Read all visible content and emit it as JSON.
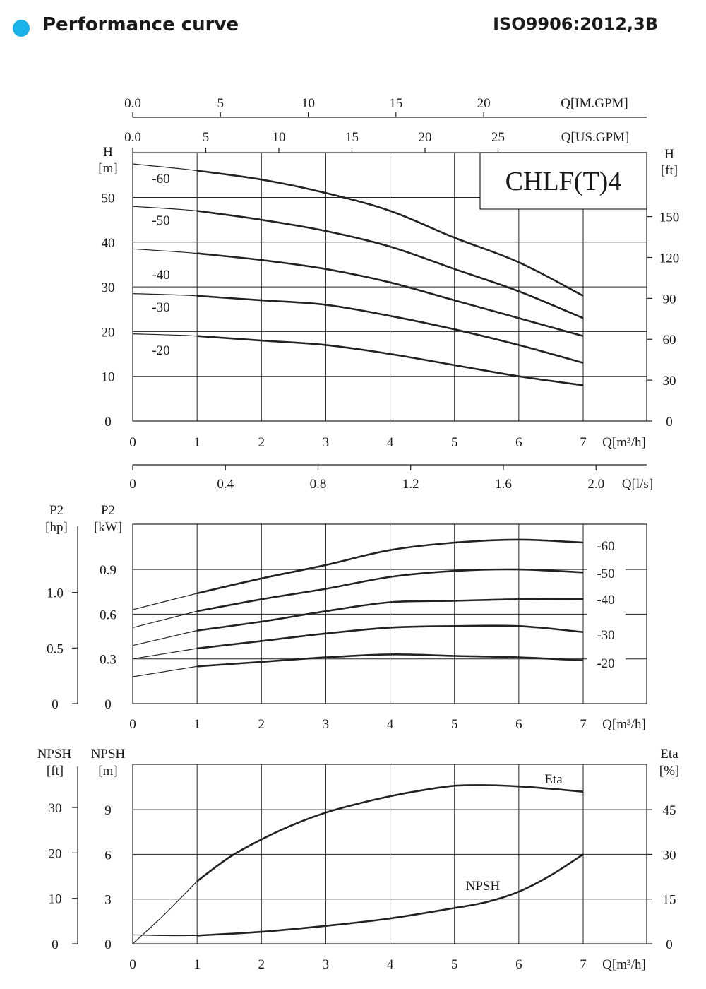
{
  "header": {
    "title": "Performance curve",
    "standard": "ISO9906:2012,3B",
    "dot_color": "#1ab2e8"
  },
  "model": "CHLF(T)4",
  "chart_data": [
    {
      "type": "line",
      "id": "head",
      "x_label": "Q[m³/h]",
      "x_ticks": [
        0,
        1,
        2,
        3,
        4,
        5,
        6,
        7
      ],
      "xlim": [
        0,
        7
      ],
      "ylim": [
        0,
        57
      ],
      "left_axis": {
        "label_line1": "H",
        "label_line2": "[m]",
        "ticks": [
          0,
          10,
          20,
          30,
          40,
          50
        ]
      },
      "right_axis": {
        "label_line1": "H",
        "label_line2": "[ft]",
        "ticks": [
          0,
          30,
          60,
          90,
          120,
          150
        ]
      },
      "top_axes": [
        {
          "label": "Q[IM.GPM]",
          "ticks": [
            0.0,
            5,
            10,
            15,
            20
          ]
        },
        {
          "label": "Q[US.GPM]",
          "ticks": [
            0.0,
            5,
            10,
            15,
            20,
            25
          ]
        }
      ],
      "bottom_axis2": {
        "label": "Q[l/s]",
        "ticks": [
          0,
          0.4,
          0.8,
          1.2,
          1.6,
          2.0
        ]
      },
      "series": [
        {
          "name": "-60",
          "x": [
            0,
            1,
            2,
            3,
            4,
            5,
            6,
            7
          ],
          "y": [
            57.5,
            56,
            54,
            51,
            47,
            41,
            35.5,
            28
          ]
        },
        {
          "name": "-50",
          "x": [
            0,
            1,
            2,
            3,
            4,
            5,
            6,
            7
          ],
          "y": [
            48,
            47,
            45,
            42.5,
            39,
            34,
            29,
            23
          ]
        },
        {
          "name": "-40",
          "x": [
            0,
            1,
            2,
            3,
            4,
            5,
            6,
            7
          ],
          "y": [
            38.5,
            37.5,
            36,
            34,
            31,
            27,
            23,
            19
          ]
        },
        {
          "name": "-30",
          "x": [
            0,
            1,
            2,
            3,
            4,
            5,
            6,
            7
          ],
          "y": [
            28.5,
            28,
            27,
            26,
            23.5,
            20.5,
            17,
            13
          ]
        },
        {
          "name": "-20",
          "x": [
            0,
            1,
            2,
            3,
            4,
            5,
            6,
            7
          ],
          "y": [
            19.5,
            19,
            18,
            17,
            15,
            12.5,
            10,
            8
          ]
        }
      ]
    },
    {
      "type": "line",
      "id": "power",
      "x_label": "Q[m³/h]",
      "x_ticks": [
        0,
        1,
        2,
        3,
        4,
        5,
        6,
        7
      ],
      "xlim": [
        0,
        7
      ],
      "ylim": [
        0,
        1.2
      ],
      "left_axis": {
        "label_line1": "P2",
        "label_line2": "[kW]",
        "ticks": [
          0,
          0.3,
          0.6,
          0.9
        ]
      },
      "outer_axis": {
        "label_line1": "P2",
        "label_line2": "[hp]",
        "ticks": [
          0,
          0.5,
          1.0
        ]
      },
      "series": [
        {
          "name": "-60",
          "x": [
            0,
            1,
            2,
            3,
            4,
            5,
            6,
            7
          ],
          "y": [
            0.63,
            0.74,
            0.84,
            0.93,
            1.03,
            1.08,
            1.1,
            1.08
          ]
        },
        {
          "name": "-50",
          "x": [
            0,
            1,
            2,
            3,
            4,
            5,
            6,
            7
          ],
          "y": [
            0.51,
            0.62,
            0.7,
            0.77,
            0.85,
            0.89,
            0.9,
            0.88
          ]
        },
        {
          "name": "-40",
          "x": [
            0,
            1,
            2,
            3,
            4,
            5,
            6,
            7
          ],
          "y": [
            0.39,
            0.49,
            0.55,
            0.62,
            0.68,
            0.69,
            0.7,
            0.7
          ]
        },
        {
          "name": "-30",
          "x": [
            0,
            1,
            2,
            3,
            4,
            5,
            6,
            7
          ],
          "y": [
            0.3,
            0.37,
            0.42,
            0.47,
            0.51,
            0.52,
            0.52,
            0.48
          ]
        },
        {
          "name": "-20",
          "x": [
            0,
            1,
            2,
            3,
            4,
            5,
            6,
            7
          ],
          "y": [
            0.18,
            0.25,
            0.28,
            0.31,
            0.33,
            0.32,
            0.31,
            0.29
          ]
        }
      ]
    },
    {
      "type": "line",
      "id": "npsh-eta",
      "x_label": "Q[m³/h]",
      "x_ticks": [
        0,
        1,
        2,
        3,
        4,
        5,
        6,
        7
      ],
      "xlim": [
        0,
        7
      ],
      "ylim": [
        0,
        12
      ],
      "left_axis": {
        "label_line1": "NPSH",
        "label_line2": "[m]",
        "ticks": [
          0,
          3,
          6,
          9
        ]
      },
      "outer_axis": {
        "label_line1": "NPSH",
        "label_line2": "[ft]",
        "ticks": [
          0,
          10,
          20,
          30
        ]
      },
      "right_axis": {
        "label_line1": "Eta",
        "label_line2": "[%]",
        "ticks": [
          0,
          15,
          30,
          45
        ]
      },
      "series": [
        {
          "name": "Eta",
          "axis": "right",
          "x": [
            0,
            0.5,
            1,
            1.5,
            2,
            2.5,
            3,
            3.5,
            4,
            4.5,
            5,
            5.5,
            6,
            6.5,
            7
          ],
          "y": [
            0,
            10,
            21,
            29,
            35,
            40,
            44,
            47,
            49.5,
            51.5,
            53,
            53.2,
            52.8,
            52,
            51
          ]
        },
        {
          "name": "NPSH",
          "axis": "left",
          "x": [
            0,
            0.5,
            1,
            2,
            3,
            4,
            5,
            5.5,
            6,
            6.5,
            7
          ],
          "y": [
            0.6,
            0.55,
            0.55,
            0.8,
            1.2,
            1.7,
            2.4,
            2.8,
            3.5,
            4.6,
            6.0
          ]
        }
      ]
    }
  ]
}
